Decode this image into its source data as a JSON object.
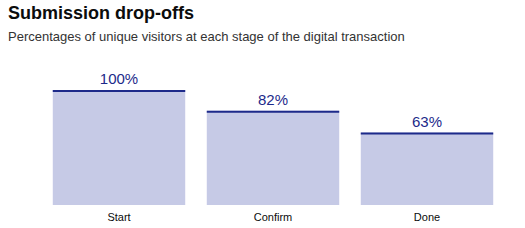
{
  "chart_data": {
    "type": "bar",
    "title": "Submission drop-offs",
    "subtitle": "Percentages of unique visitors at each stage of the digital transaction",
    "categories": [
      "Start",
      "Confirm",
      "Done"
    ],
    "values": [
      100,
      82,
      63
    ],
    "value_labels": [
      "100%",
      "82%",
      "63%"
    ],
    "color": "#c6cae6",
    "ylim": [
      0,
      100
    ],
    "grid": false,
    "data_labels": true,
    "tick_labels": "x"
  }
}
